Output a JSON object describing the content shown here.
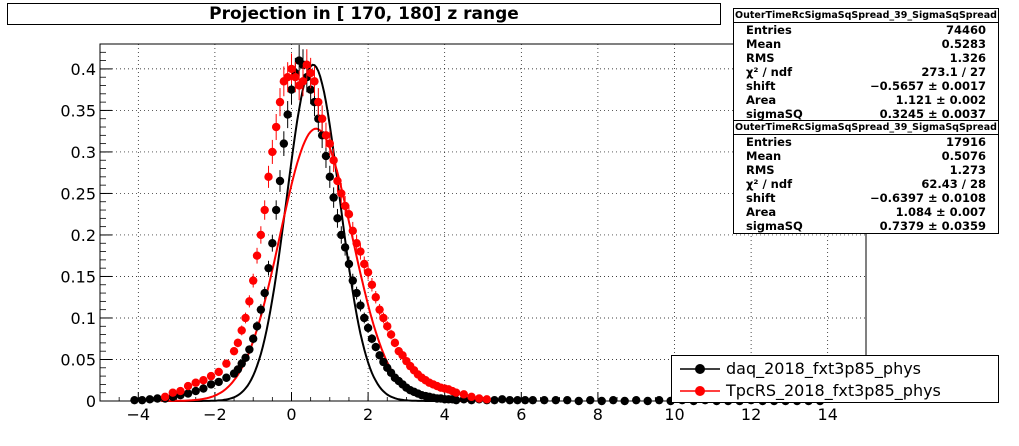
{
  "chart_data": {
    "type": "scatter",
    "title": "Projection in [ 170, 180] z range",
    "xlim": [
      -5,
      15
    ],
    "ylim": [
      0,
      0.43
    ],
    "x_ticks": [
      "-4",
      "-2",
      "0",
      "2",
      "4",
      "6",
      "8",
      "10",
      "12",
      "14"
    ],
    "y_ticks": [
      "0",
      "0.05",
      "0.1",
      "0.15",
      "0.2",
      "0.25",
      "0.3",
      "0.35",
      "0.4"
    ],
    "grid": true,
    "legend_position": "bottom-right",
    "series": [
      {
        "name": "daq_2018_fxt3p85_phys",
        "color": "#000000",
        "x": [
          -4.1,
          -3.9,
          -3.7,
          -3.5,
          -3.3,
          -3.1,
          -2.9,
          -2.7,
          -2.5,
          -2.3,
          -2.1,
          -1.9,
          -1.7,
          -1.5,
          -1.4,
          -1.3,
          -1.2,
          -1.1,
          -1.0,
          -0.9,
          -0.8,
          -0.7,
          -0.6,
          -0.5,
          -0.4,
          -0.3,
          -0.2,
          -0.1,
          0.0,
          0.1,
          0.2,
          0.3,
          0.4,
          0.5,
          0.6,
          0.7,
          0.8,
          0.9,
          1.0,
          1.1,
          1.2,
          1.3,
          1.4,
          1.5,
          1.6,
          1.7,
          1.8,
          1.9,
          2.0,
          2.1,
          2.2,
          2.3,
          2.4,
          2.5,
          2.6,
          2.7,
          2.8,
          2.9,
          3.0,
          3.1,
          3.2,
          3.3,
          3.4,
          3.5,
          3.6,
          3.7,
          3.8,
          3.9,
          4.0,
          4.1,
          4.2,
          4.3,
          4.5,
          4.7,
          4.9,
          5.1,
          5.3,
          5.5,
          5.7,
          5.9,
          6.1,
          6.3,
          6.6,
          6.9,
          7.2,
          7.5,
          7.8,
          8.1,
          8.4,
          8.7,
          9.0,
          9.3,
          9.6,
          9.9,
          10.2,
          10.5,
          10.8,
          11.1,
          11.4,
          11.7,
          12.0,
          12.3,
          12.6,
          12.9,
          13.2,
          13.5,
          13.8
        ],
        "y": [
          0.001,
          0.001,
          0.002,
          0.003,
          0.003,
          0.005,
          0.007,
          0.009,
          0.012,
          0.015,
          0.02,
          0.023,
          0.028,
          0.033,
          0.038,
          0.045,
          0.052,
          0.062,
          0.075,
          0.09,
          0.11,
          0.13,
          0.16,
          0.19,
          0.23,
          0.265,
          0.31,
          0.345,
          0.375,
          0.395,
          0.41,
          0.405,
          0.39,
          0.375,
          0.36,
          0.34,
          0.32,
          0.295,
          0.27,
          0.245,
          0.22,
          0.2,
          0.185,
          0.165,
          0.145,
          0.13,
          0.115,
          0.1,
          0.088,
          0.075,
          0.065,
          0.055,
          0.047,
          0.04,
          0.034,
          0.028,
          0.024,
          0.02,
          0.016,
          0.013,
          0.011,
          0.009,
          0.007,
          0.006,
          0.005,
          0.004,
          0.003,
          0.003,
          0.002,
          0.002,
          0.002,
          0.001,
          0.002,
          0.001,
          0.002,
          0.001,
          0.001,
          0.002,
          0.001,
          0.001,
          0.001,
          0.001,
          0.001,
          0.001,
          0.001,
          0.0,
          0.001,
          0.0,
          0.001,
          0.0,
          0.001,
          0.0,
          0.001,
          0.0,
          0.001,
          0.0,
          0.001,
          0.0,
          0.0,
          0.0,
          0.001,
          0.0,
          0.0,
          0.0,
          0.0,
          0.0,
          0.0
        ]
      },
      {
        "name": "TpcRS_2018_fxt3p85_phys",
        "color": "#ff0000",
        "x": [
          -3.3,
          -3.1,
          -2.9,
          -2.7,
          -2.5,
          -2.3,
          -2.1,
          -1.9,
          -1.7,
          -1.5,
          -1.4,
          -1.3,
          -1.2,
          -1.1,
          -1.0,
          -0.9,
          -0.8,
          -0.7,
          -0.6,
          -0.5,
          -0.4,
          -0.3,
          -0.2,
          -0.1,
          0.0,
          0.1,
          0.2,
          0.3,
          0.4,
          0.5,
          0.6,
          0.7,
          0.8,
          0.9,
          1.0,
          1.1,
          1.2,
          1.3,
          1.4,
          1.5,
          1.6,
          1.7,
          1.8,
          1.9,
          2.0,
          2.1,
          2.2,
          2.3,
          2.4,
          2.5,
          2.6,
          2.7,
          2.8,
          2.9,
          3.0,
          3.1,
          3.2,
          3.3,
          3.4,
          3.5,
          3.6,
          3.7,
          3.8,
          3.9,
          4.0,
          4.1,
          4.2,
          4.3,
          4.5,
          4.7,
          4.9,
          5.1
        ],
        "y": [
          0.005,
          0.01,
          0.012,
          0.018,
          0.022,
          0.025,
          0.03,
          0.035,
          0.045,
          0.06,
          0.07,
          0.085,
          0.1,
          0.12,
          0.145,
          0.175,
          0.2,
          0.23,
          0.27,
          0.3,
          0.33,
          0.36,
          0.385,
          0.39,
          0.4,
          0.39,
          0.38,
          0.385,
          0.405,
          0.395,
          0.385,
          0.36,
          0.34,
          0.32,
          0.31,
          0.29,
          0.265,
          0.25,
          0.235,
          0.225,
          0.205,
          0.19,
          0.18,
          0.165,
          0.155,
          0.14,
          0.125,
          0.11,
          0.1,
          0.09,
          0.08,
          0.07,
          0.06,
          0.055,
          0.048,
          0.042,
          0.037,
          0.032,
          0.028,
          0.025,
          0.022,
          0.02,
          0.018,
          0.016,
          0.015,
          0.014,
          0.012,
          0.01,
          0.008,
          0.005,
          0.003,
          0.002
        ]
      }
    ],
    "fits": [
      {
        "series": "daq_2018_fxt3p85_phys",
        "color": "#000000",
        "shift": -0.5657,
        "area": 1.121,
        "sigmaSQ": 0.3245,
        "peak": 0.405
      },
      {
        "series": "TpcRS_2018_fxt3p85_phys",
        "color": "#ff0000",
        "shift": -0.6397,
        "area": 1.084,
        "sigmaSQ": 0.7379,
        "peak": 0.328
      }
    ]
  },
  "stats": [
    {
      "header": "OuterTimeRcSigmaSqSpread_39_SigmaSqSpread",
      "rows": [
        {
          "label": "Entries",
          "value": "74460"
        },
        {
          "label": "Mean",
          "value": "0.5283"
        },
        {
          "label": "RMS",
          "value": "1.326"
        },
        {
          "label": "χ² / ndf",
          "value": "273.1 / 27"
        },
        {
          "label": "shift",
          "value": "−0.5657 ± 0.0017"
        },
        {
          "label": "Area",
          "value": "1.121 ± 0.002"
        },
        {
          "label": "sigmaSQ",
          "value": "0.3245 ± 0.0037"
        }
      ]
    },
    {
      "header": "OuterTimeRcSigmaSqSpread_39_SigmaSqSpread",
      "rows": [
        {
          "label": "Entries",
          "value": "17916"
        },
        {
          "label": "Mean",
          "value": "0.5076"
        },
        {
          "label": "RMS",
          "value": "1.273"
        },
        {
          "label": "χ² / ndf",
          "value": "62.43 / 28"
        },
        {
          "label": "shift",
          "value": "−0.6397 ± 0.0108"
        },
        {
          "label": "Area",
          "value": "1.084 ± 0.007"
        },
        {
          "label": "sigmaSQ",
          "value": "0.7379 ± 0.0359"
        }
      ]
    }
  ],
  "legend": [
    {
      "label": "daq_2018_fxt3p85_phys",
      "color": "#000000"
    },
    {
      "label": "TpcRS_2018_fxt3p85_phys",
      "color": "#ff0000"
    }
  ]
}
